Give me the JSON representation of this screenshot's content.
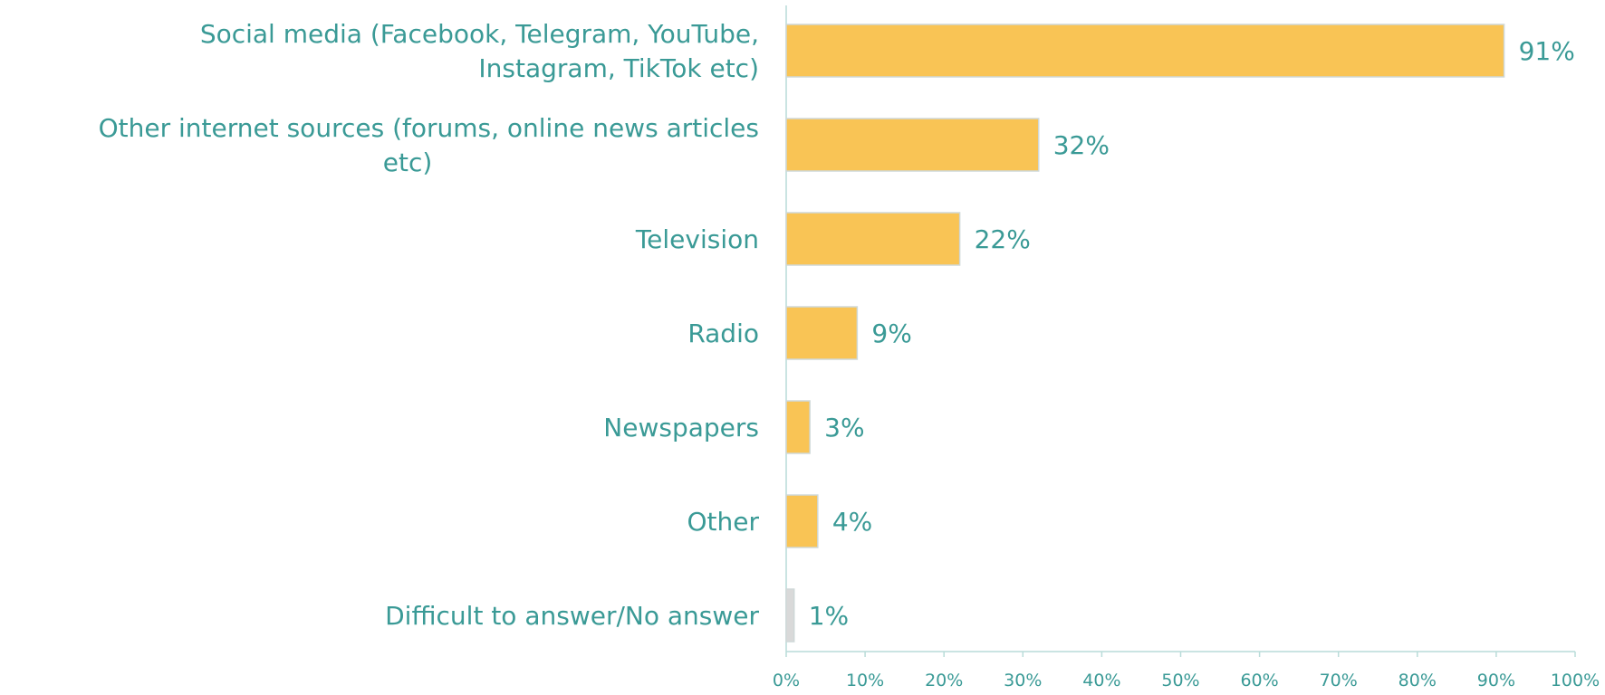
{
  "chart_data": {
    "type": "bar",
    "orientation": "horizontal",
    "categories": [
      [
        "Social media (Facebook, Telegram, YouTube,",
        "Instagram, TikTok etc)"
      ],
      [
        "Other internet sources (forums, online news articles",
        "etc)"
      ],
      [
        "Television"
      ],
      [
        "Radio"
      ],
      [
        "Newspapers"
      ],
      [
        "Other"
      ],
      [
        "Difficult to answer/No answer"
      ]
    ],
    "values": [
      91,
      32,
      22,
      9,
      3,
      4,
      1
    ],
    "data_labels": [
      "91%",
      "32%",
      "22%",
      "9%",
      "3%",
      "4%",
      "1%"
    ],
    "bar_colors": [
      "#f9c455",
      "#f9c455",
      "#f9c455",
      "#f9c455",
      "#f9c455",
      "#f9c455",
      "#d9d9d9"
    ],
    "xlim": [
      0,
      100
    ],
    "x_ticks": [
      0,
      10,
      20,
      30,
      40,
      50,
      60,
      70,
      80,
      90,
      100
    ],
    "x_tick_labels": [
      "0%",
      "10%",
      "20%",
      "30%",
      "40%",
      "50%",
      "60%",
      "70%",
      "80%",
      "90%",
      "100%"
    ],
    "title": "",
    "xlabel": "",
    "ylabel": "",
    "grid": false,
    "legend": "none"
  }
}
